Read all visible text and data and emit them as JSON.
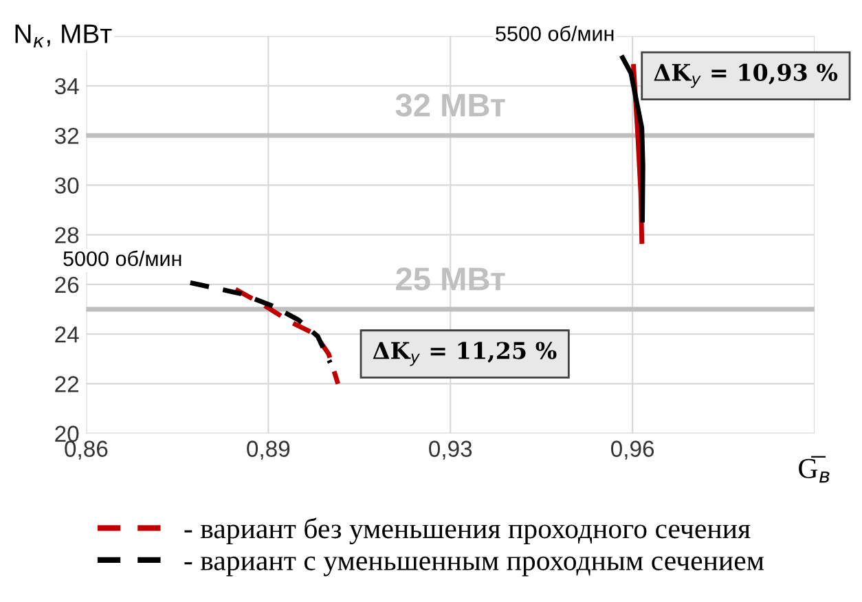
{
  "chart_data": {
    "type": "line",
    "xlabel": "G̅$_{в}$",
    "ylabel": "N$_{к}$, МВт",
    "xlim": [
      0.86,
      1.0
    ],
    "xticks": [
      {
        "value": 0.86,
        "label": "0,86"
      },
      {
        "value": 0.895,
        "label": "0,89"
      },
      {
        "value": 0.93,
        "label": "0,93"
      },
      {
        "value": 0.965,
        "label": "0,96"
      },
      {
        "value": 1.0,
        "label": null
      }
    ],
    "ylim": [
      20,
      36
    ],
    "yticks": [
      20,
      22,
      24,
      26,
      28,
      30,
      32,
      34,
      {
        "value": 36,
        "label": null
      }
    ],
    "grid": true,
    "legend": "bottom",
    "marker": "none",
    "series": [
      {
        "name": "- вариант без уменьшения проходного сечения",
        "color": "#c00000",
        "line_style": "dashed",
        "x": [
          0.8887,
          0.8939,
          0.8992,
          0.904,
          0.9066,
          0.9084
        ],
        "values": [
          25.8,
          25.2,
          24.5,
          24.0,
          23.2,
          22.0
        ]
      },
      {
        "name": "- вариант с уменьшенным проходным сечением",
        "color": "#000000",
        "line_style": "dashed",
        "x": [
          0.88,
          0.8897,
          0.896,
          0.9008,
          0.9045,
          0.9069
        ],
        "values": [
          26.07,
          25.63,
          25.12,
          24.57,
          23.91,
          22.85
        ]
      },
      {
        "color": "#c00000",
        "line_style": "solid",
        "x": [
          0.9652,
          0.966,
          0.9666,
          0.9668
        ],
        "values": [
          34.78,
          32.08,
          29.65,
          27.73
        ]
      },
      {
        "color": "#000000",
        "line_style": "solid",
        "x": [
          0.9631,
          0.9647,
          0.9668,
          0.967,
          0.9669
        ],
        "values": [
          35.13,
          34.51,
          32.3,
          30.76,
          28.59
        ]
      }
    ],
    "ref_lines": [
      {
        "axis": "y",
        "value": 32,
        "label": "32 МВт",
        "color": "#bfbfbf"
      },
      {
        "axis": "y",
        "value": 25,
        "label": "25 МВт",
        "color": "#bfbfbf"
      }
    ],
    "annotations": [
      {
        "text": "5000 об/мин",
        "x": 0.88,
        "y": 26.07
      },
      {
        "text": "5500 об/мин",
        "x": 0.9631,
        "y": 35.13
      },
      "ΔK$_{у}$ = 11,25 %",
      "ΔK$_{у}$ = 10,93 %"
    ]
  }
}
